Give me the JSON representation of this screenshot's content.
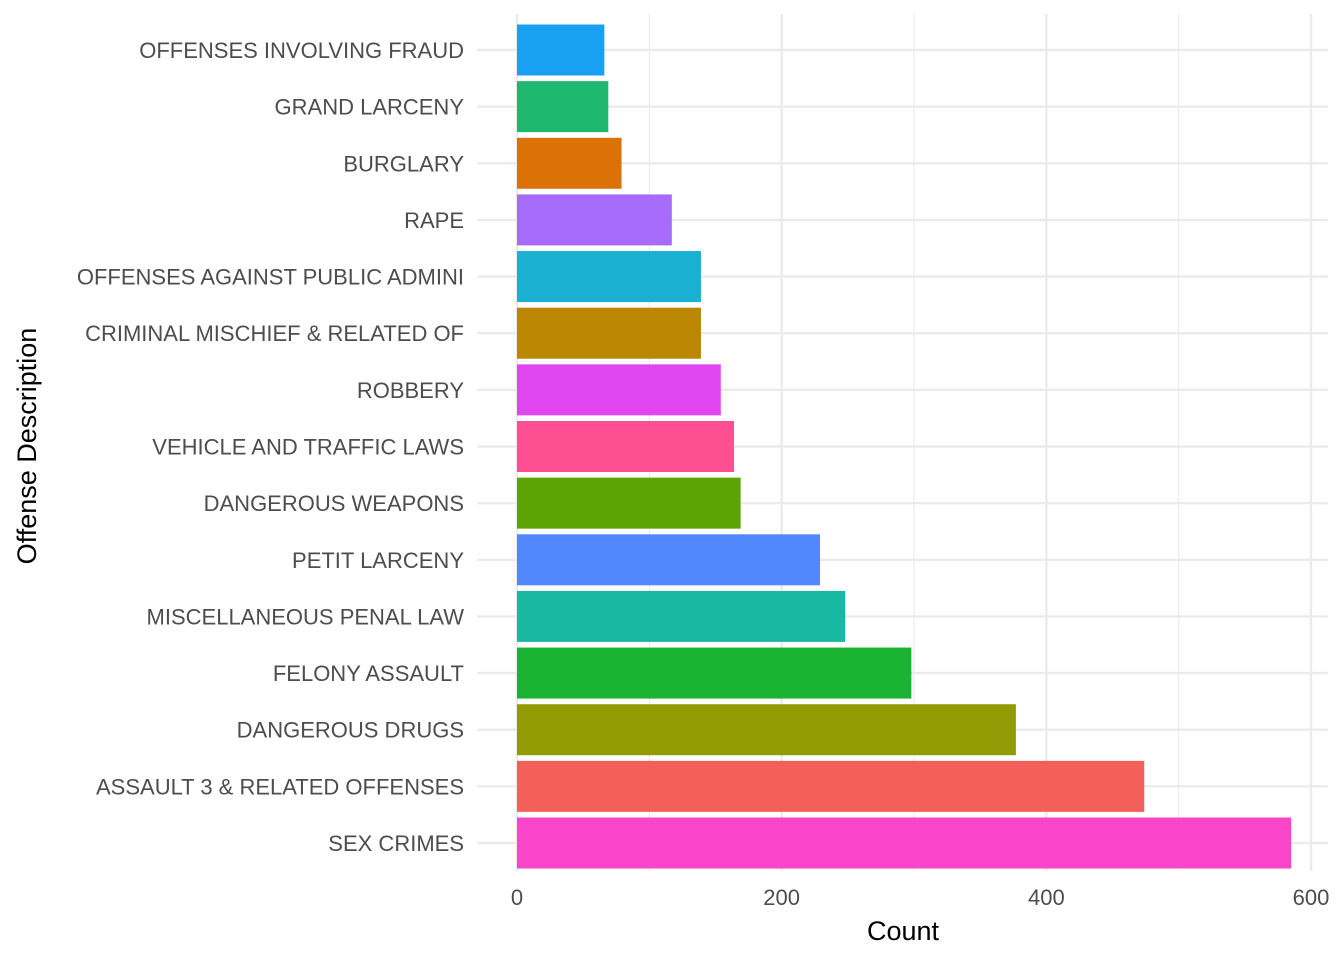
{
  "chart_data": {
    "type": "bar",
    "orientation": "horizontal",
    "xlabel": "Count",
    "ylabel": "Offense Description",
    "xlim": [
      0,
      610
    ],
    "x_ticks": [
      0,
      200,
      400,
      600
    ],
    "grid": true,
    "categories": [
      "OFFENSES INVOLVING FRAUD",
      "GRAND LARCENY",
      "BURGLARY",
      "RAPE",
      "OFFENSES AGAINST PUBLIC ADMINI",
      "CRIMINAL MISCHIEF & RELATED OF",
      "ROBBERY",
      "VEHICLE AND TRAFFIC LAWS",
      "DANGEROUS WEAPONS",
      "PETIT LARCENY",
      "MISCELLANEOUS PENAL LAW",
      "FELONY ASSAULT",
      "DANGEROUS DRUGS",
      "ASSAULT 3 & RELATED OFFENSES",
      "SEX CRIMES"
    ],
    "values": [
      66,
      69,
      79,
      117,
      139,
      139,
      154,
      164,
      169,
      229,
      248,
      298,
      377,
      474,
      585
    ],
    "colors": [
      "#1aa0f2",
      "#1db86e",
      "#dc7107",
      "#a66bf9",
      "#19b0d3",
      "#bb8703",
      "#e145f0",
      "#fd4f91",
      "#5ca404",
      "#5288fe",
      "#19b8a2",
      "#1ab432",
      "#929a04",
      "#f3605b",
      "#f945c9"
    ]
  }
}
